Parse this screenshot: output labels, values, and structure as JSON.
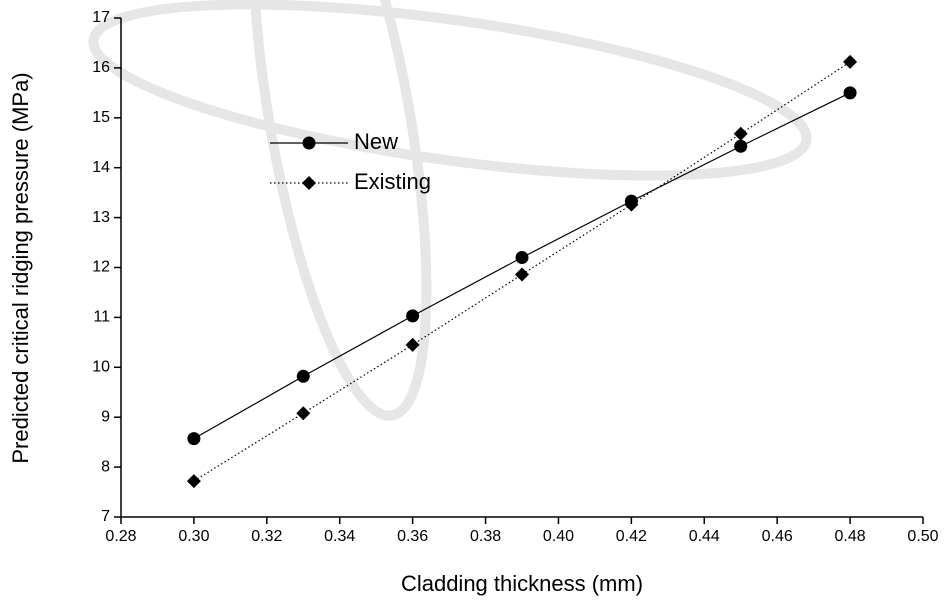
{
  "chart_data": {
    "type": "line",
    "x_label": "Cladding thickness (mm)",
    "y_label": "Predicted critical ridging pressure (MPa)",
    "x": [
      0.3,
      0.33,
      0.36,
      0.39,
      0.42,
      0.45,
      0.48
    ],
    "series": [
      {
        "name": "New",
        "color": "#000000",
        "marker": "circle",
        "dash": "solid",
        "values": [
          8.57,
          9.82,
          11.03,
          12.2,
          13.33,
          14.43,
          15.5
        ]
      },
      {
        "name": "Existing",
        "color": "#000000",
        "marker": "diamond",
        "dash": "dotted",
        "values": [
          7.72,
          9.08,
          10.45,
          11.86,
          13.26,
          14.68,
          16.12
        ]
      }
    ],
    "xlim": [
      0.28,
      0.5
    ],
    "xticks": [
      {
        "value": 0.28,
        "label": "0.28"
      },
      {
        "value": 0.3,
        "label": "0.30"
      },
      {
        "value": 0.32,
        "label": "0.32"
      },
      {
        "value": 0.34,
        "label": "0.34"
      },
      {
        "value": 0.36,
        "label": "0.36"
      },
      {
        "value": 0.38,
        "label": "0.38"
      },
      {
        "value": 0.4,
        "label": "0.40"
      },
      {
        "value": 0.42,
        "label": "0.42"
      },
      {
        "value": 0.44,
        "label": "0.44"
      },
      {
        "value": 0.46,
        "label": "0.46"
      },
      {
        "value": 0.48,
        "label": "0.48"
      },
      {
        "value": 0.5,
        "label": "0.50"
      }
    ],
    "ylim": [
      7,
      17
    ],
    "yticks": [
      7,
      8,
      9,
      10,
      11,
      12,
      13,
      14,
      15,
      16,
      17
    ],
    "grid": false,
    "legend": "upper left"
  }
}
